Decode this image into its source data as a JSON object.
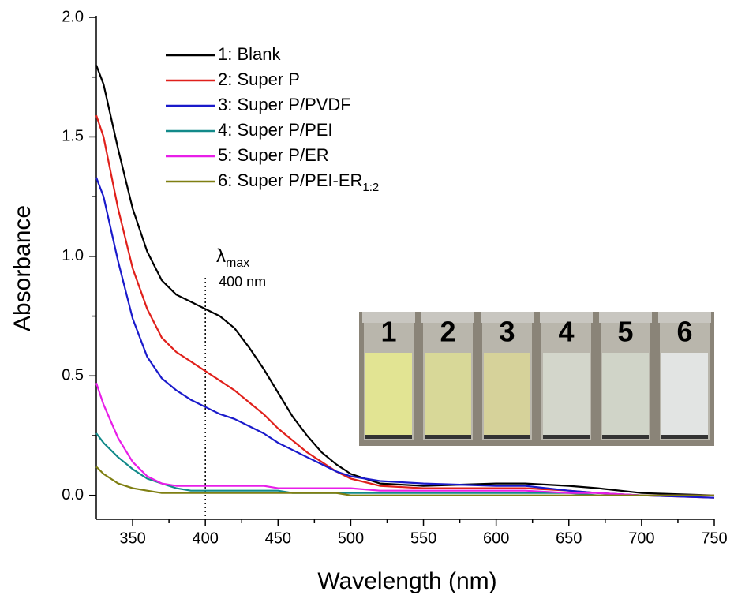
{
  "chart_data": {
    "type": "line",
    "x_label": "Wavelength (nm)",
    "y_label": "Absorbance",
    "x": [
      325,
      330,
      340,
      350,
      360,
      370,
      380,
      390,
      400,
      410,
      420,
      430,
      440,
      450,
      460,
      470,
      480,
      490,
      500,
      520,
      550,
      600,
      620,
      650,
      670,
      700,
      750
    ],
    "series": [
      {
        "name": "1: Blank",
        "color": "#000000",
        "values": [
          1.8,
          1.72,
          1.45,
          1.2,
          1.02,
          0.9,
          0.84,
          0.81,
          0.78,
          0.75,
          0.7,
          0.62,
          0.53,
          0.43,
          0.33,
          0.25,
          0.18,
          0.13,
          0.09,
          0.05,
          0.04,
          0.05,
          0.05,
          0.04,
          0.03,
          0.01,
          0.0
        ]
      },
      {
        "name": "2: Super P",
        "color": "#e0201b",
        "values": [
          1.59,
          1.5,
          1.2,
          0.95,
          0.78,
          0.66,
          0.6,
          0.56,
          0.52,
          0.48,
          0.44,
          0.39,
          0.34,
          0.28,
          0.23,
          0.18,
          0.14,
          0.1,
          0.07,
          0.04,
          0.03,
          0.03,
          0.03,
          0.02,
          0.01,
          0.0,
          -0.01
        ]
      },
      {
        "name": "3: Super P/PVDF",
        "color": "#1a1acb",
        "values": [
          1.33,
          1.25,
          0.98,
          0.74,
          0.58,
          0.49,
          0.44,
          0.4,
          0.37,
          0.34,
          0.32,
          0.29,
          0.26,
          0.22,
          0.19,
          0.16,
          0.13,
          0.1,
          0.08,
          0.06,
          0.05,
          0.04,
          0.04,
          0.02,
          0.01,
          0.0,
          -0.01
        ]
      },
      {
        "name": "4: Super P/PEI",
        "color": "#128a8a",
        "values": [
          0.26,
          0.22,
          0.16,
          0.11,
          0.07,
          0.05,
          0.03,
          0.02,
          0.02,
          0.02,
          0.02,
          0.02,
          0.02,
          0.02,
          0.01,
          0.01,
          0.01,
          0.01,
          0.01,
          0.01,
          0.01,
          0.01,
          0.01,
          0.01,
          0.0,
          0.0,
          0.0
        ]
      },
      {
        "name": "5: Super P/ER",
        "color": "#e81ee8",
        "values": [
          0.47,
          0.38,
          0.24,
          0.14,
          0.08,
          0.05,
          0.04,
          0.04,
          0.04,
          0.04,
          0.04,
          0.04,
          0.04,
          0.03,
          0.03,
          0.03,
          0.03,
          0.03,
          0.03,
          0.02,
          0.02,
          0.02,
          0.02,
          0.01,
          0.01,
          0.0,
          0.0
        ]
      },
      {
        "name": "6: Super P/PEI-ER",
        "name_subscript": "1:2",
        "color": "#7f7f12",
        "values": [
          0.12,
          0.09,
          0.05,
          0.03,
          0.02,
          0.01,
          0.01,
          0.01,
          0.01,
          0.01,
          0.01,
          0.01,
          0.01,
          0.01,
          0.01,
          0.01,
          0.01,
          0.01,
          0.0,
          0.0,
          0.0,
          0.0,
          0.0,
          0.0,
          0.0,
          0.0,
          0.0
        ]
      }
    ],
    "xlim": [
      325,
      750
    ],
    "xticks": [
      350,
      400,
      450,
      500,
      550,
      600,
      650,
      700,
      750
    ],
    "xminorticks": [
      375,
      425,
      475,
      525,
      575,
      625,
      675,
      725
    ],
    "ylim": [
      -0.1,
      2.0
    ],
    "yticks": [
      {
        "value": 0,
        "label": "0.0"
      },
      0.5,
      {
        "value": 1,
        "label": "1.0"
      },
      1.5,
      {
        "value": 2,
        "label": "2.0"
      }
    ],
    "yminorticks": [
      0.25,
      0.75,
      1.25,
      1.75
    ],
    "annotation": {
      "x": 400,
      "symbol": "λ",
      "subscript": "max",
      "text": "400 nm"
    },
    "inset": {
      "labels": [
        "1",
        "2",
        "3",
        "4",
        "5",
        "6"
      ],
      "colors": [
        "#e2e493",
        "#d8d898",
        "#d6d29a",
        "#d3d6cb",
        "#d0d4c8",
        "#e2e4e3"
      ]
    }
  }
}
